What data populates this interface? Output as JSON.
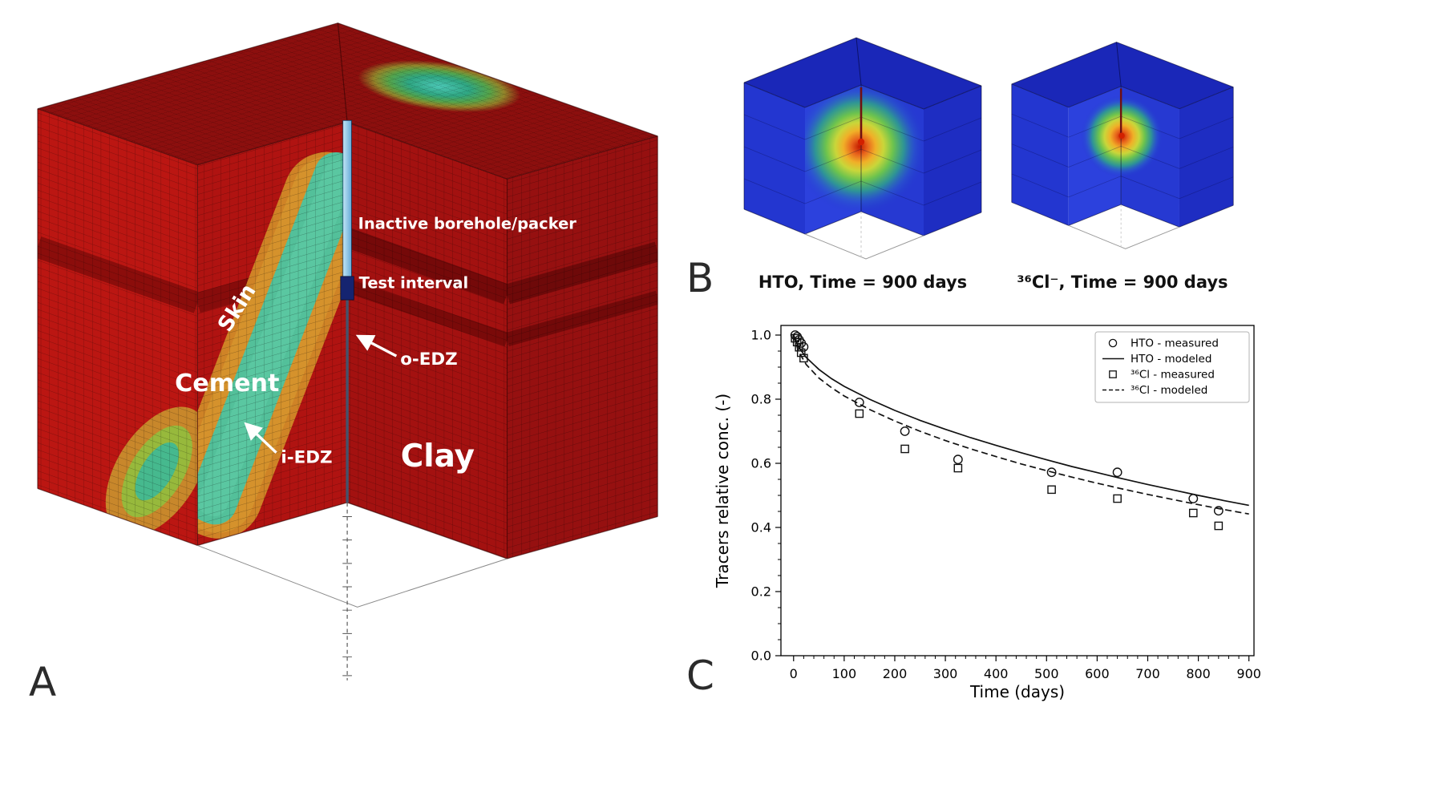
{
  "figure": {
    "background": "#ffffff"
  },
  "panels": {
    "a": {
      "letter": "A",
      "labels": {
        "skin": "Skin",
        "cement": "Cement",
        "clay": "Clay",
        "inactive_borehole": "Inactive borehole/packer",
        "test_interval": "Test interval",
        "o_edz": "o-EDZ",
        "i_edz": "i-EDZ"
      },
      "colors": {
        "clay_red": "#b31512",
        "skin_orange": "#cf8326",
        "cement_green": "#53c09a",
        "borehole_blue": "#9fd2ec",
        "test_interval_navy": "#152470"
      }
    },
    "b": {
      "letter": "B",
      "captions": [
        "HTO, Time = 900 days",
        "³⁶Cl⁻, Time = 900 days"
      ],
      "colors": {
        "cube_blue": "#2336d0",
        "plume_core": "#d22000"
      }
    },
    "c": {
      "letter": "C"
    }
  },
  "chart_data": {
    "type": "line",
    "title": "",
    "xlabel": "Time (days)",
    "ylabel": "Tracers relative conc. (-)",
    "xlim": [
      -25,
      910
    ],
    "ylim": [
      0,
      1.03
    ],
    "xticks": [
      0,
      100,
      200,
      300,
      400,
      500,
      600,
      700,
      800,
      900
    ],
    "yticks": [
      0.0,
      0.2,
      0.4,
      0.6,
      0.8,
      1.0
    ],
    "grid": false,
    "legend_position": "upper right",
    "series": [
      {
        "name": "HTO - measured",
        "style": "scatter",
        "marker": "circle",
        "points": [
          [
            3,
            1.0
          ],
          [
            7,
            0.995
          ],
          [
            11,
            0.985
          ],
          [
            15,
            0.975
          ],
          [
            20,
            0.963
          ],
          [
            130,
            0.79
          ],
          [
            220,
            0.7
          ],
          [
            325,
            0.612
          ],
          [
            510,
            0.572
          ],
          [
            640,
            0.572
          ],
          [
            790,
            0.49
          ],
          [
            840,
            0.452
          ]
        ]
      },
      {
        "name": "HTO - modeled",
        "style": "line",
        "line": "solid",
        "points": [
          [
            0,
            1.0
          ],
          [
            10,
            0.962
          ],
          [
            25,
            0.93
          ],
          [
            50,
            0.893
          ],
          [
            75,
            0.864
          ],
          [
            100,
            0.84
          ],
          [
            150,
            0.8
          ],
          [
            200,
            0.765
          ],
          [
            250,
            0.734
          ],
          [
            300,
            0.706
          ],
          [
            350,
            0.68
          ],
          [
            400,
            0.656
          ],
          [
            450,
            0.633
          ],
          [
            500,
            0.611
          ],
          [
            550,
            0.59
          ],
          [
            600,
            0.571
          ],
          [
            650,
            0.552
          ],
          [
            700,
            0.534
          ],
          [
            750,
            0.517
          ],
          [
            800,
            0.5
          ],
          [
            850,
            0.484
          ],
          [
            900,
            0.469
          ]
        ]
      },
      {
        "name": "³⁶Cl - measured",
        "style": "scatter",
        "marker": "square",
        "points": [
          [
            3,
            0.99
          ],
          [
            7,
            0.978
          ],
          [
            11,
            0.962
          ],
          [
            15,
            0.945
          ],
          [
            20,
            0.928
          ],
          [
            130,
            0.755
          ],
          [
            220,
            0.645
          ],
          [
            325,
            0.585
          ],
          [
            510,
            0.518
          ],
          [
            640,
            0.49
          ],
          [
            790,
            0.445
          ],
          [
            840,
            0.405
          ]
        ]
      },
      {
        "name": "³⁶Cl - modeled",
        "style": "line",
        "line": "dashed",
        "points": [
          [
            0,
            1.0
          ],
          [
            10,
            0.948
          ],
          [
            25,
            0.908
          ],
          [
            50,
            0.866
          ],
          [
            75,
            0.836
          ],
          [
            100,
            0.81
          ],
          [
            150,
            0.768
          ],
          [
            200,
            0.732
          ],
          [
            250,
            0.7
          ],
          [
            300,
            0.671
          ],
          [
            350,
            0.645
          ],
          [
            400,
            0.621
          ],
          [
            450,
            0.598
          ],
          [
            500,
            0.577
          ],
          [
            550,
            0.557
          ],
          [
            600,
            0.538
          ],
          [
            650,
            0.52
          ],
          [
            700,
            0.503
          ],
          [
            750,
            0.487
          ],
          [
            800,
            0.471
          ],
          [
            850,
            0.456
          ],
          [
            900,
            0.442
          ]
        ]
      }
    ]
  }
}
